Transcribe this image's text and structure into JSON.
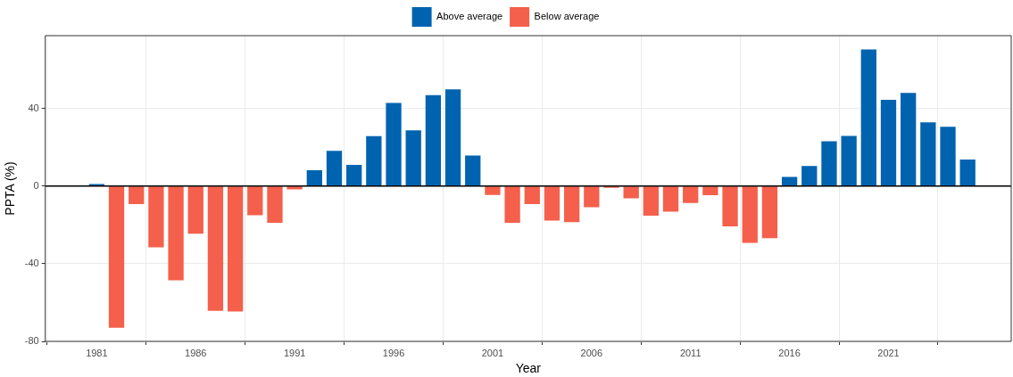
{
  "chart_data": {
    "type": "bar",
    "xlabel": "Year",
    "ylabel": "PPTA (%)",
    "x": [
      1981,
      1982,
      1983,
      1984,
      1985,
      1986,
      1987,
      1988,
      1989,
      1990,
      1991,
      1992,
      1993,
      1994,
      1995,
      1996,
      1997,
      1998,
      1999,
      2000,
      2001,
      2002,
      2003,
      2004,
      2005,
      2006,
      2007,
      2008,
      2009,
      2010,
      2011,
      2012,
      2013,
      2014,
      2015,
      2016,
      2017,
      2018,
      2019,
      2020,
      2021,
      2022,
      2023,
      2024,
      2025
    ],
    "series": [
      {
        "name": "Above average",
        "color": "#0063b0",
        "values": [
          1,
          null,
          null,
          null,
          null,
          null,
          null,
          null,
          null,
          null,
          null,
          8.2,
          18.1,
          10.9,
          25.7,
          42.8,
          28.7,
          46.8,
          49.8,
          15.7,
          null,
          null,
          null,
          null,
          null,
          null,
          null,
          null,
          null,
          null,
          null,
          null,
          null,
          null,
          null,
          4.7,
          10.4,
          23.1,
          25.8,
          70.4,
          44.4,
          48,
          32.9,
          30.6,
          13.7
        ]
      },
      {
        "name": "Below average",
        "color": "#f4604b",
        "values": [
          null,
          -73,
          -9.3,
          -31.5,
          -48.5,
          -24.6,
          -64.3,
          -64.6,
          -15,
          -18.9,
          -1.7,
          null,
          null,
          null,
          null,
          null,
          null,
          null,
          null,
          null,
          -4.6,
          -18.9,
          -9.3,
          -17.8,
          -18.6,
          -10.9,
          -0.9,
          -6.3,
          -15.3,
          -13.2,
          -8.7,
          -4.7,
          -20.8,
          -29.3,
          -26.9,
          null,
          null,
          null,
          null,
          null,
          null,
          null,
          null,
          null,
          null
        ]
      }
    ],
    "xlim": [
      1978.4,
      2027.2
    ],
    "xticks": [
      1981,
      1986,
      1991,
      1996,
      2001,
      2006,
      2011,
      2016,
      2021
    ],
    "ylim": [
      -80,
      77.5
    ],
    "yticks": [
      -80,
      -40,
      0,
      40
    ],
    "ref_lines": [
      {
        "axis": "y",
        "value": 0,
        "color": "#000000"
      }
    ],
    "grid": true,
    "legend": "top"
  }
}
